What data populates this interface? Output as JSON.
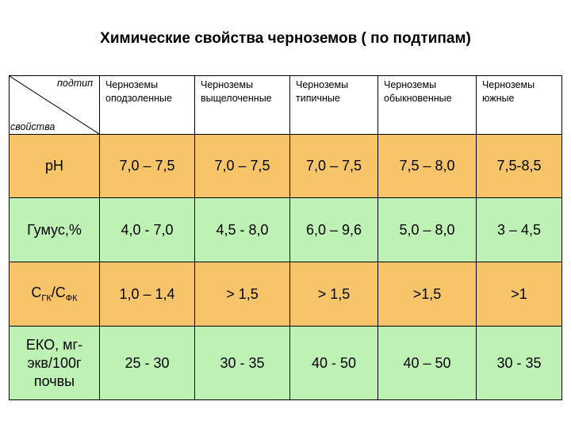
{
  "title": "Химические свойства черноземов ( по подтипам)",
  "header": {
    "corner_top": "подтип",
    "corner_bottom": "свойства",
    "columns": [
      {
        "line1": "Черноземы",
        "line2": "оподзоленные"
      },
      {
        "line1": "Черноземы",
        "line2": "выщелоченные"
      },
      {
        "line1": "Черноземы",
        "line2": "типичные"
      },
      {
        "line1": "Черноземы",
        "line2": "обыкновенные"
      },
      {
        "line1": "Черноземы",
        "line2": "южные"
      }
    ]
  },
  "rows": [
    {
      "label": "pH",
      "values": [
        "7,0 – 7,5",
        "7,0 – 7,5",
        "7,0 – 7,5",
        "7,5 – 8,0",
        "7,5-8,5"
      ]
    },
    {
      "label": "Гумус,%",
      "values": [
        "4,0 - 7,0",
        "4,5 - 8,0",
        "6,0 – 9,6",
        "5,0 – 8,0",
        "3 – 4,5"
      ]
    },
    {
      "label_main1": "С",
      "label_sub1": "ГК",
      "label_sep": "/С",
      "label_sub2": "ФК",
      "values": [
        "1,0 – 1,4",
        "> 1,5",
        "> 1,5",
        ">1,5",
        ">1"
      ]
    },
    {
      "label_line1": "ЕКО, мг-",
      "label_line2": "экв/100г",
      "label_line3": "почвы",
      "values": [
        "25 - 30",
        "30 - 35",
        "40 - 50",
        "40 – 50",
        "30 - 35"
      ]
    }
  ],
  "colors": {
    "row_orange": "#f7c46a",
    "row_green": "#bdf2b4"
  }
}
